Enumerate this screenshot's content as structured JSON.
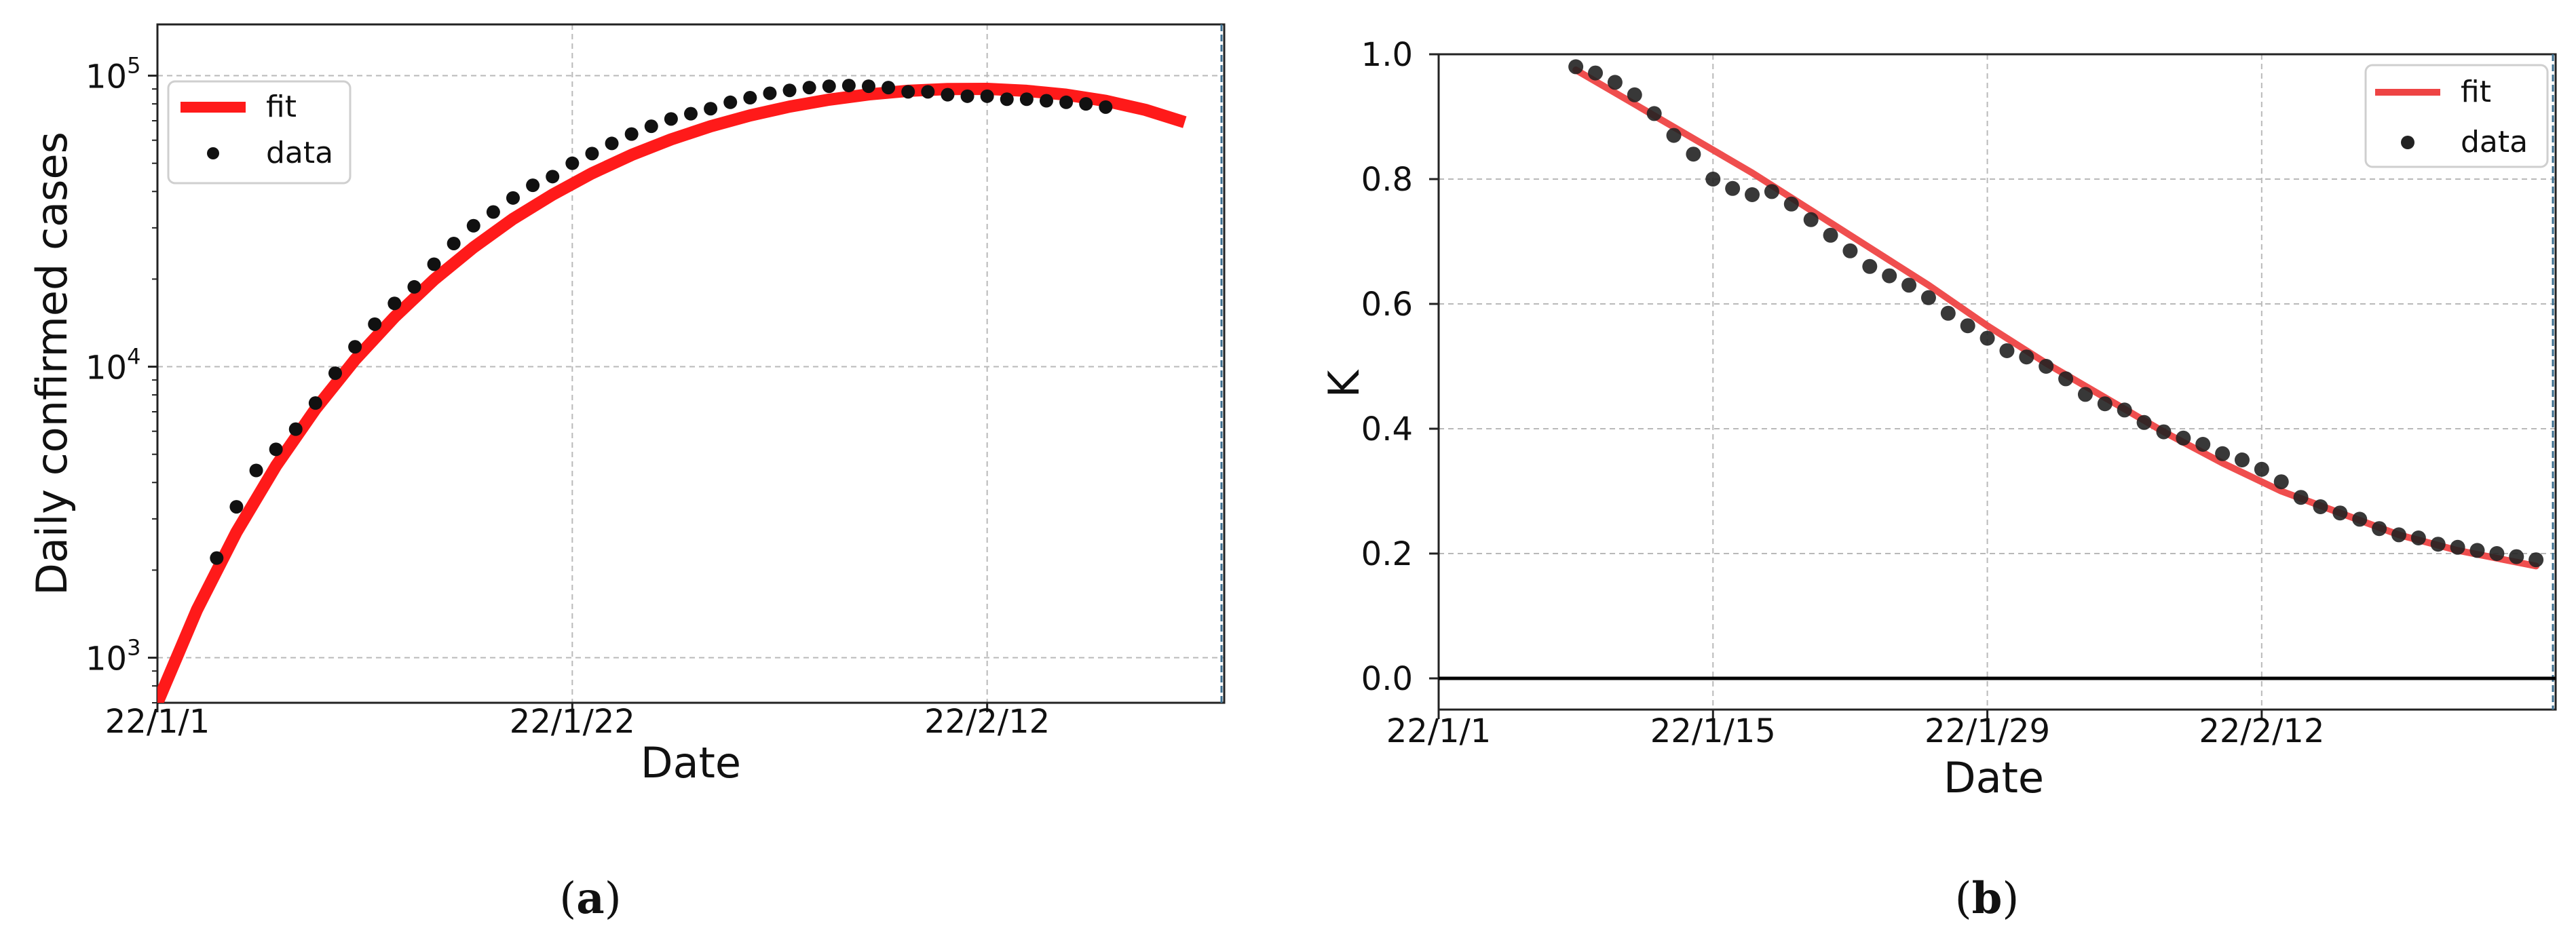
{
  "chart_data": [
    {
      "type": "scatter",
      "panel_label": "a",
      "xlabel": "Date",
      "ylabel": "Daily confirmed cases",
      "yscale": "log",
      "ylim": [
        700,
        150000
      ],
      "xlim": [
        "2022-01-01",
        "2022-02-24"
      ],
      "x_ticks": [
        "22/1/1",
        "22/1/22",
        "22/2/12"
      ],
      "y_ticks": [
        {
          "value": 1000,
          "base": "10",
          "exp": "3"
        },
        {
          "value": 10000,
          "base": "10",
          "exp": "4"
        },
        {
          "value": 100000,
          "base": "10",
          "exp": "5"
        }
      ],
      "grid": true,
      "legend_position": "top-left",
      "series": [
        {
          "name": "fit",
          "kind": "line",
          "color": "#ff1a1a",
          "x": [
            "2022-01-01",
            "2022-01-03",
            "2022-01-05",
            "2022-01-07",
            "2022-01-09",
            "2022-01-11",
            "2022-01-13",
            "2022-01-15",
            "2022-01-17",
            "2022-01-19",
            "2022-01-21",
            "2022-01-23",
            "2022-01-25",
            "2022-01-27",
            "2022-01-29",
            "2022-01-31",
            "2022-02-02",
            "2022-02-04",
            "2022-02-06",
            "2022-02-08",
            "2022-02-10",
            "2022-02-12",
            "2022-02-14",
            "2022-02-16",
            "2022-02-18",
            "2022-02-20",
            "2022-02-22"
          ],
          "y": [
            700,
            1460,
            2700,
            4560,
            7150,
            10560,
            14800,
            19900,
            25700,
            32200,
            39000,
            46200,
            53400,
            60400,
            67000,
            73000,
            78300,
            82700,
            86200,
            88700,
            90000,
            90100,
            88700,
            86000,
            81900,
            76300,
            69200
          ]
        },
        {
          "name": "data",
          "kind": "scatter",
          "color": "#111111",
          "x": [
            "2022-01-04",
            "2022-01-05",
            "2022-01-06",
            "2022-01-07",
            "2022-01-08",
            "2022-01-09",
            "2022-01-10",
            "2022-01-11",
            "2022-01-12",
            "2022-01-13",
            "2022-01-14",
            "2022-01-15",
            "2022-01-16",
            "2022-01-17",
            "2022-01-18",
            "2022-01-19",
            "2022-01-20",
            "2022-01-21",
            "2022-01-22",
            "2022-01-23",
            "2022-01-24",
            "2022-01-25",
            "2022-01-26",
            "2022-01-27",
            "2022-01-28",
            "2022-01-29",
            "2022-01-30",
            "2022-01-31",
            "2022-02-01",
            "2022-02-02",
            "2022-02-03",
            "2022-02-04",
            "2022-02-05",
            "2022-02-06",
            "2022-02-07",
            "2022-02-08",
            "2022-02-09",
            "2022-02-10",
            "2022-02-11",
            "2022-02-12",
            "2022-02-13",
            "2022-02-14",
            "2022-02-15",
            "2022-02-16",
            "2022-02-17",
            "2022-02-18"
          ],
          "y": [
            2200,
            3300,
            4400,
            5200,
            6100,
            7500,
            9500,
            11700,
            14000,
            16500,
            18800,
            22500,
            26500,
            30500,
            34000,
            38000,
            42000,
            45000,
            50000,
            54000,
            58500,
            63000,
            67000,
            71000,
            74000,
            77000,
            81000,
            84000,
            87000,
            89000,
            91000,
            92000,
            92500,
            92000,
            91000,
            88000,
            88000,
            86000,
            85000,
            85000,
            83000,
            83000,
            82000,
            81000,
            80000,
            78000
          ]
        }
      ]
    },
    {
      "type": "scatter",
      "panel_label": "b",
      "xlabel": "Date",
      "ylabel": "K",
      "yscale": "linear",
      "ylim": [
        -0.05,
        1.0
      ],
      "xlim": [
        "2022-01-01",
        "2022-02-27"
      ],
      "x_ticks": [
        "22/1/1",
        "22/1/15",
        "22/1/29",
        "22/2/12"
      ],
      "y_ticks": [
        "0.0",
        "0.2",
        "0.4",
        "0.6",
        "0.8",
        "1.0"
      ],
      "hline": 0,
      "grid": true,
      "legend_position": "top-right",
      "series": [
        {
          "name": "fit",
          "kind": "line",
          "color": "#ee4444",
          "x": [
            "2022-01-08",
            "2022-01-11",
            "2022-01-14",
            "2022-01-17",
            "2022-01-20",
            "2022-01-23",
            "2022-01-26",
            "2022-01-29",
            "2022-02-01",
            "2022-02-04",
            "2022-02-07",
            "2022-02-10",
            "2022-02-13",
            "2022-02-16",
            "2022-02-19",
            "2022-02-22",
            "2022-02-26"
          ],
          "y": [
            0.975,
            0.92,
            0.865,
            0.81,
            0.75,
            0.69,
            0.63,
            0.565,
            0.505,
            0.45,
            0.395,
            0.345,
            0.3,
            0.265,
            0.23,
            0.205,
            0.18
          ]
        },
        {
          "name": "data",
          "kind": "scatter",
          "color": "#222222",
          "x": [
            "2022-01-08",
            "2022-01-09",
            "2022-01-10",
            "2022-01-11",
            "2022-01-12",
            "2022-01-13",
            "2022-01-14",
            "2022-01-15",
            "2022-01-16",
            "2022-01-17",
            "2022-01-18",
            "2022-01-19",
            "2022-01-20",
            "2022-01-21",
            "2022-01-22",
            "2022-01-23",
            "2022-01-24",
            "2022-01-25",
            "2022-01-26",
            "2022-01-27",
            "2022-01-28",
            "2022-01-29",
            "2022-01-30",
            "2022-01-31",
            "2022-02-01",
            "2022-02-02",
            "2022-02-03",
            "2022-02-04",
            "2022-02-05",
            "2022-02-06",
            "2022-02-07",
            "2022-02-08",
            "2022-02-09",
            "2022-02-10",
            "2022-02-11",
            "2022-02-12",
            "2022-02-13",
            "2022-02-14",
            "2022-02-15",
            "2022-02-16",
            "2022-02-17",
            "2022-02-18",
            "2022-02-19",
            "2022-02-20",
            "2022-02-21",
            "2022-02-22",
            "2022-02-23",
            "2022-02-24",
            "2022-02-25",
            "2022-02-26"
          ],
          "y": [
            0.98,
            0.97,
            0.955,
            0.935,
            0.905,
            0.87,
            0.84,
            0.8,
            0.785,
            0.775,
            0.78,
            0.76,
            0.735,
            0.71,
            0.685,
            0.66,
            0.645,
            0.63,
            0.61,
            0.585,
            0.565,
            0.545,
            0.525,
            0.515,
            0.5,
            0.48,
            0.455,
            0.44,
            0.43,
            0.41,
            0.395,
            0.385,
            0.375,
            0.36,
            0.35,
            0.335,
            0.315,
            0.29,
            0.275,
            0.265,
            0.255,
            0.24,
            0.23,
            0.225,
            0.215,
            0.21,
            0.205,
            0.2,
            0.195,
            0.19
          ]
        }
      ]
    }
  ]
}
